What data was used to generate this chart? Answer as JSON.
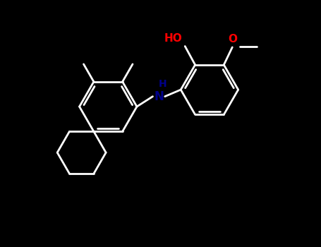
{
  "background_color": "#000000",
  "bond_color": "#ffffff",
  "bond_width": 2.0,
  "oh_color": "#ff0000",
  "o_color": "#ff0000",
  "nh_color": "#00008b",
  "figsize": [
    4.55,
    3.5
  ],
  "dpi": 100,
  "xlim": [
    -1.0,
    8.5
  ],
  "ylim": [
    -2.5,
    4.5
  ],
  "r_benz": 0.85,
  "r_cyc": 0.72
}
